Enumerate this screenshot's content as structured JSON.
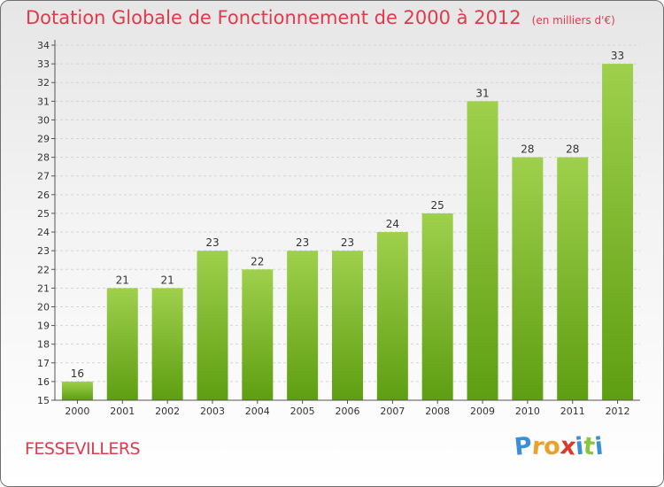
{
  "title": "Dotation Globale de Fonctionnement de 2000 à 2012",
  "unit_note": "(en milliers d'€)",
  "commune": "FESSEVILLERS",
  "logo": {
    "letters": [
      "P",
      "r",
      "o",
      "x",
      "i",
      "t",
      "i"
    ],
    "colors": [
      "#3b8fd6",
      "#e8a12a",
      "#e8a12a",
      "#d93a2c",
      "#3b8fd6",
      "#8cc63f",
      "#3b8fd6"
    ]
  },
  "chart_data": {
    "type": "bar",
    "title": "Dotation Globale de Fonctionnement de 2000 à 2012",
    "xlabel": "",
    "ylabel": "",
    "categories": [
      "2000",
      "2001",
      "2002",
      "2003",
      "2004",
      "2005",
      "2006",
      "2007",
      "2008",
      "2009",
      "2010",
      "2011",
      "2012"
    ],
    "values": [
      16,
      21,
      21,
      23,
      22,
      23,
      23,
      24,
      25,
      31,
      28,
      28,
      33
    ],
    "ylim": [
      15,
      34
    ],
    "yticks": [
      15,
      16,
      17,
      18,
      19,
      20,
      21,
      22,
      23,
      24,
      25,
      26,
      27,
      28,
      29,
      30,
      31,
      32,
      33,
      34
    ],
    "grid": true,
    "bar_color_top": "#9fd04d",
    "bar_color_bottom": "#5e9e12"
  }
}
